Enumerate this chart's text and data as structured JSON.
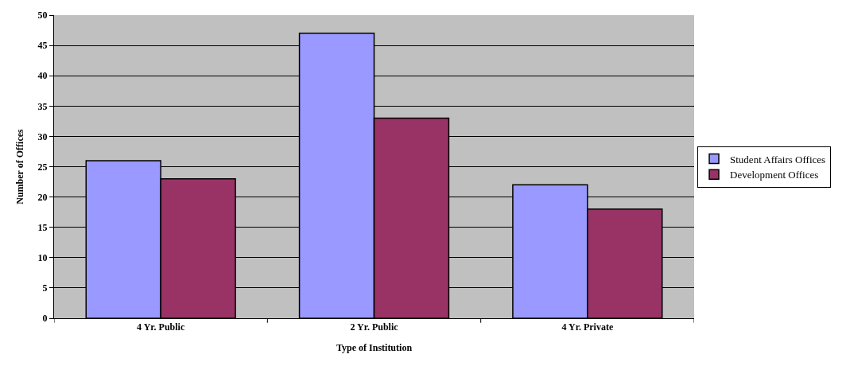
{
  "chart_data": {
    "type": "bar",
    "xlabel": "Type of Institution",
    "ylabel": "Number of Offices",
    "categories": [
      "4 Yr. Public",
      "2 Yr. Public",
      "4 Yr. Private"
    ],
    "series": [
      {
        "name": "Student Affairs Offices",
        "color": "#9999ff",
        "values": [
          26,
          47,
          22
        ]
      },
      {
        "name": "Development Offices",
        "color": "#993366",
        "values": [
          23,
          33,
          18
        ]
      }
    ],
    "ylim": [
      0,
      50
    ],
    "yticks": [
      0,
      5,
      10,
      15,
      20,
      25,
      30,
      35,
      40,
      45,
      50
    ],
    "grid": "y",
    "legend": "right"
  }
}
